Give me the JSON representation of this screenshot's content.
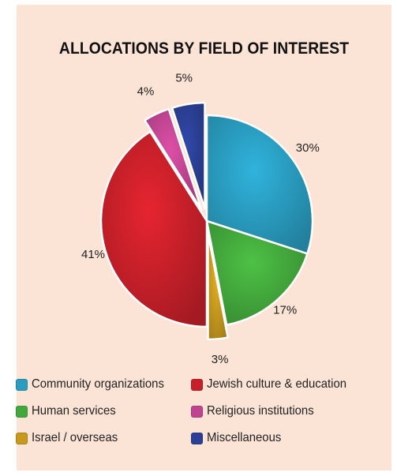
{
  "chart_data": {
    "type": "pie",
    "title": "ALLOCATIONS BY FIELD OF INTEREST",
    "categories": [
      "Community organizations",
      "Human services",
      "Israel / overseas",
      "Jewish culture & education",
      "Religious institutions",
      "Miscellaneous"
    ],
    "values": [
      30,
      17,
      3,
      41,
      4,
      5
    ],
    "value_labels": [
      "30%",
      "17%",
      "3%",
      "41%",
      "4%",
      "5%"
    ],
    "colors": [
      "#2a9cbf",
      "#43a83c",
      "#c79a1e",
      "#c8202a",
      "#c04591",
      "#2b3f94"
    ],
    "exploded": [
      false,
      false,
      true,
      false,
      true,
      true
    ],
    "legend_placement": "bottom"
  },
  "legend": {
    "items": [
      {
        "label": "Community organizations",
        "color": "#2a9cbf"
      },
      {
        "label": "Jewish culture & education",
        "color": "#c8202a"
      },
      {
        "label": "Human services",
        "color": "#43a83c"
      },
      {
        "label": "Religious institutions",
        "color": "#c04591"
      },
      {
        "label": "Israel / overseas",
        "color": "#c79a1e"
      },
      {
        "label": "Miscellaneous",
        "color": "#2b3f94"
      }
    ]
  }
}
